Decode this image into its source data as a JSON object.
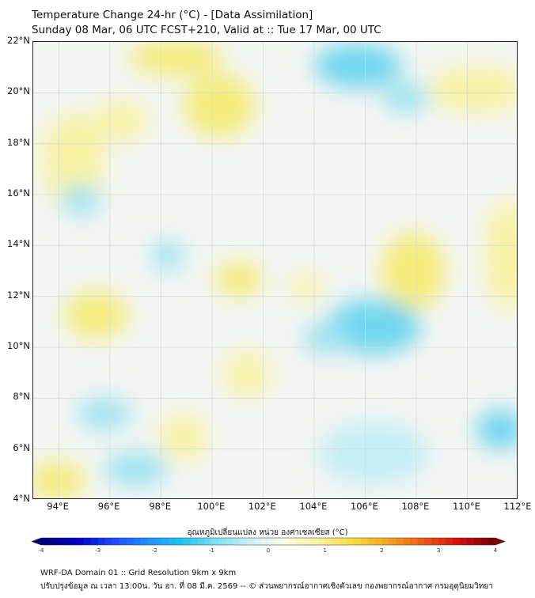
{
  "header": {
    "title_line1": "Temperature Change 24-hr (°C) - [Data Assimilation]",
    "title_line2": "Sunday 08 Mar, 06 UTC FCST+210, Valid at :: Tue 17 Mar, 00 UTC"
  },
  "map": {
    "lat_ticks": [
      "22°N",
      "20°N",
      "18°N",
      "16°N",
      "14°N",
      "12°N",
      "10°N",
      "8°N",
      "6°N",
      "4°N"
    ],
    "lon_ticks": [
      "94°E",
      "96°E",
      "98°E",
      "100°E",
      "102°E",
      "104°E",
      "106°E",
      "108°E",
      "110°E",
      "112°E"
    ],
    "lat_range": [
      4,
      22
    ],
    "lon_range": [
      93,
      112
    ],
    "field_colors": {
      "warm": "#f5ec7a",
      "cool": "#6fd6ef",
      "neutral": "#f3f6f3"
    }
  },
  "colorbar": {
    "label": "อุณหภูมิเปลี่ยนแปลง หน่วย องศาเซลเซียส (°C)",
    "tick_labels": [
      "-4",
      "-3",
      "-2",
      "-1",
      "0",
      "1",
      "2",
      "3",
      "4"
    ],
    "range": [
      -4,
      4
    ],
    "colors": [
      "#00007a",
      "#0000c8",
      "#1e4bff",
      "#1f8fff",
      "#20c4f0",
      "#7fe2f4",
      "#cdeff4",
      "#fbfbe0",
      "#f8f09a",
      "#f6dc3c",
      "#f4a41e",
      "#ee5a14",
      "#d41010",
      "#7a0000"
    ]
  },
  "footer": {
    "line1": "WRF-DA Domain 01 :: Grid Resolution 9km x 9km",
    "line2": "ปรับปรุงข้อมูล ณ เวลา 13:00น. วัน อา. ที่ 08 มี.ค. 2569 -- © ส่วนพยากรณ์อากาศเชิงตัวเลข กองพยากรณ์อากาศ กรมอุตุนิยมวิทยา"
  }
}
